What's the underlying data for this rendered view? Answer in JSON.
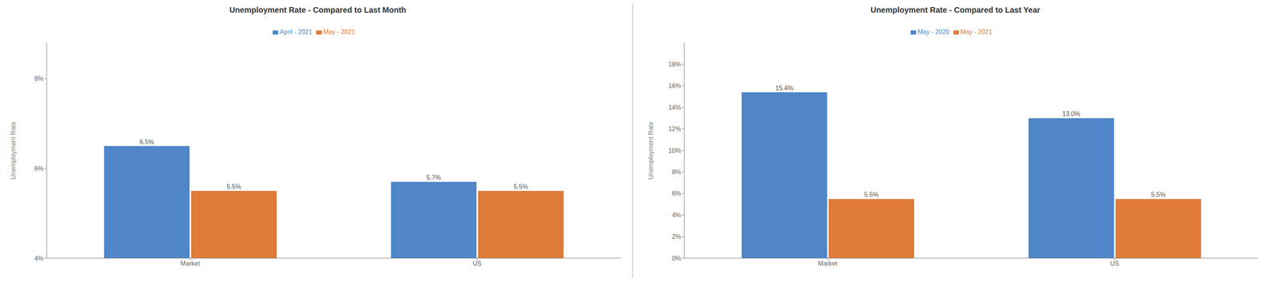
{
  "chart_data": [
    {
      "type": "bar",
      "title": "Unemployment Rate - Compared to Last Month",
      "ylabel": "Unemployment Rate",
      "categories": [
        "Market",
        "US"
      ],
      "series": [
        {
          "name": "April - 2021",
          "color": "#4E86C8",
          "values": [
            6.5,
            5.7
          ],
          "value_labels": [
            "6.5%",
            "5.7%"
          ]
        },
        {
          "name": "May - 2021",
          "color": "#E07B39",
          "values": [
            5.5,
            5.5
          ],
          "value_labels": [
            "5.5%",
            "5.5%"
          ]
        }
      ],
      "ylim": [
        4,
        8.8
      ],
      "yticks": [
        {
          "value": 4,
          "label": "4%"
        },
        {
          "value": 6,
          "label": "6%"
        },
        {
          "value": 8,
          "label": "8%"
        }
      ],
      "grid": false,
      "legend": "top",
      "data_labels": true
    },
    {
      "type": "bar",
      "title": "Unemployment Rate - Compared to Last Year",
      "ylabel": "Unemployment Rate",
      "categories": [
        "Market",
        "US"
      ],
      "series": [
        {
          "name": "May - 2020",
          "color": "#4E86C8",
          "values": [
            15.4,
            13.0
          ],
          "value_labels": [
            "15.4%",
            "13.0%"
          ]
        },
        {
          "name": "May - 2021",
          "color": "#E07B39",
          "values": [
            5.5,
            5.5
          ],
          "value_labels": [
            "5.5%",
            "5.5%"
          ]
        }
      ],
      "ylim": [
        0,
        20.0
      ],
      "yticks": [
        {
          "value": 0,
          "label": "0%"
        },
        {
          "value": 2,
          "label": "2%"
        },
        {
          "value": 4,
          "label": "4%"
        },
        {
          "value": 6,
          "label": "6%"
        },
        {
          "value": 8,
          "label": "8%"
        },
        {
          "value": 10,
          "label": "10%"
        },
        {
          "value": 12,
          "label": "12%"
        },
        {
          "value": 14,
          "label": "14%"
        },
        {
          "value": 16,
          "label": "16%"
        },
        {
          "value": 18,
          "label": "18%"
        }
      ],
      "grid": false,
      "legend": "top",
      "data_labels": true
    }
  ]
}
